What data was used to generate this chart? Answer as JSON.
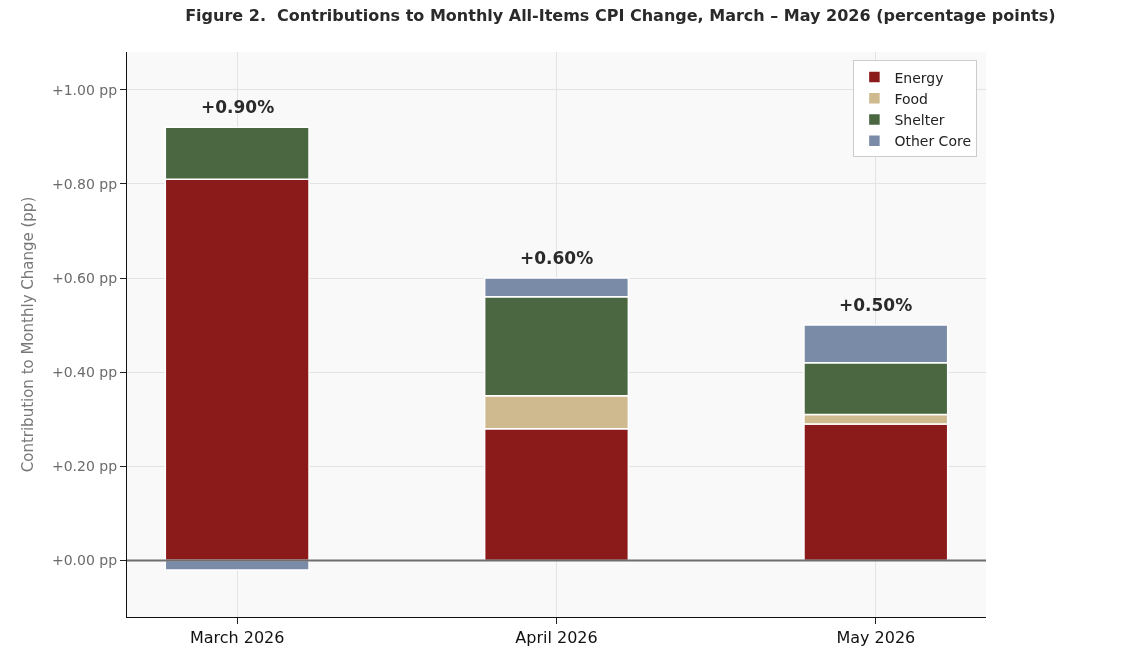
{
  "chart_data": {
    "type": "bar",
    "title": "Figure 2.  Contributions to Monthly All-Items CPI Change, March – May 2026 (percentage points)",
    "ylabel": "Contribution to Monthly Change (pp)",
    "categories": [
      "March 2026",
      "April 2026",
      "May 2026"
    ],
    "series": [
      {
        "name": "Energy",
        "color": "#8b1a1b",
        "values": [
          0.81,
          0.28,
          0.29
        ]
      },
      {
        "name": "Food",
        "color": "#cfb98e",
        "values": [
          0,
          0.07,
          0.02
        ]
      },
      {
        "name": "Shelter",
        "color": "#4a6741",
        "values": [
          0.11,
          0.21,
          0.11
        ]
      },
      {
        "name": "Other Core",
        "color": "#7a8ba8",
        "values": [
          -0.02,
          0.04,
          0.08
        ]
      }
    ],
    "stacked": true,
    "totals": [
      "+0.90%",
      "+0.60%",
      "+0.50%"
    ],
    "ylim": [
      -0.12,
      1.08
    ],
    "yticks": [
      {
        "value": 0,
        "label": "+0.00 pp"
      },
      {
        "value": 0.2,
        "label": "+0.20 pp"
      },
      {
        "value": 0.4,
        "label": "+0.40 pp"
      },
      {
        "value": 0.6,
        "label": "+0.60 pp"
      },
      {
        "value": 0.8,
        "label": "+0.80 pp"
      },
      {
        "value": 1,
        "label": "+1.00 pp"
      }
    ],
    "ref_lines": [
      {
        "axis": "y",
        "value": 0,
        "color": "#6e6e6e"
      }
    ],
    "grid": true,
    "legend": "top right"
  }
}
